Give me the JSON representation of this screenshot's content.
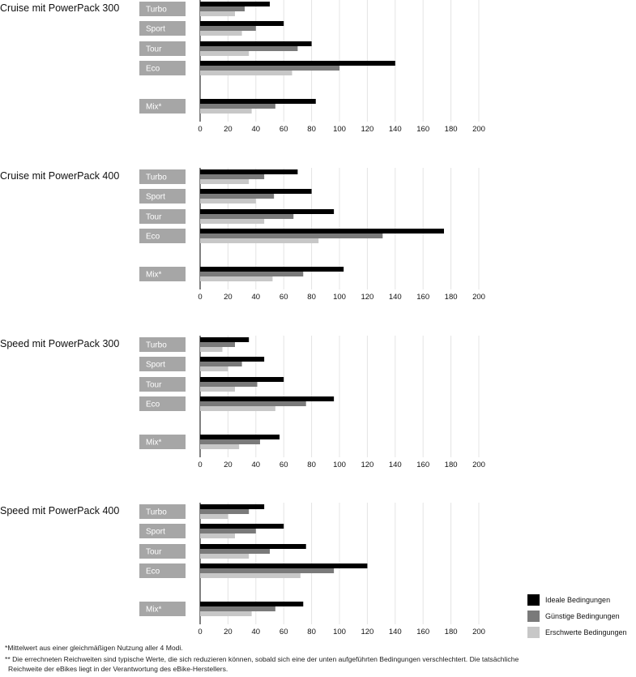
{
  "colors": {
    "ideal": "#000000",
    "guenstig": "#7a7a7a",
    "erschwert": "#c7c7c7",
    "label_box": "#a6a6a6",
    "grid": "#e4e4e4",
    "axis": "#000000"
  },
  "legend": [
    {
      "label": "Ideale Bedingungen",
      "color": "#000000"
    },
    {
      "label": "Günstige Bedingungen",
      "color": "#7a7a7a"
    },
    {
      "label": "Erschwerte Bedingungen",
      "color": "#c7c7c7"
    }
  ],
  "chart_data": [
    {
      "type": "bar",
      "orientation": "horizontal",
      "title": "Cruise mit PowerPack 300",
      "categories": [
        "Turbo",
        "Sport",
        "Tour",
        "Eco",
        "Mix*"
      ],
      "series": [
        {
          "name": "Ideale Bedingungen",
          "values": [
            50,
            60,
            80,
            140,
            83
          ]
        },
        {
          "name": "Günstige Bedingungen",
          "values": [
            32,
            40,
            70,
            100,
            54
          ]
        },
        {
          "name": "Erschwerte Bedingungen",
          "values": [
            25,
            30,
            35,
            66,
            37
          ]
        }
      ],
      "xticks": [
        "0",
        "20",
        "40",
        "60",
        "80",
        "100",
        "120",
        "140",
        "160",
        "180",
        "200"
      ],
      "xlim": [
        0,
        200
      ],
      "grid": true
    },
    {
      "type": "bar",
      "orientation": "horizontal",
      "title": "Cruise mit PowerPack 400",
      "categories": [
        "Turbo",
        "Sport",
        "Tour",
        "Eco",
        "Mix*"
      ],
      "series": [
        {
          "name": "Ideale Bedingungen",
          "values": [
            70,
            80,
            96,
            175,
            103
          ]
        },
        {
          "name": "Günstige Bedingungen",
          "values": [
            46,
            53,
            67,
            131,
            74
          ]
        },
        {
          "name": "Erschwerte Bedingungen",
          "values": [
            35,
            40,
            46,
            85,
            52
          ]
        }
      ],
      "xticks": [
        "0",
        "20",
        "40",
        "60",
        "80",
        "100",
        "120",
        "140",
        "160",
        "180",
        "200"
      ],
      "xlim": [
        0,
        200
      ],
      "grid": true
    },
    {
      "type": "bar",
      "orientation": "horizontal",
      "title": "Speed mit PowerPack 300",
      "categories": [
        "Turbo",
        "Sport",
        "Tour",
        "Eco",
        "Mix*"
      ],
      "series": [
        {
          "name": "Ideale Bedingungen",
          "values": [
            35,
            46,
            60,
            96,
            57
          ]
        },
        {
          "name": "Günstige Bedingungen",
          "values": [
            25,
            30,
            41,
            76,
            43
          ]
        },
        {
          "name": "Erschwerte Bedingungen",
          "values": [
            16,
            20,
            25,
            54,
            28
          ]
        }
      ],
      "xticks": [
        "0",
        "20",
        "40",
        "60",
        "80",
        "100",
        "120",
        "140",
        "160",
        "180",
        "200"
      ],
      "xlim": [
        0,
        200
      ],
      "grid": true
    },
    {
      "type": "bar",
      "orientation": "horizontal",
      "title": "Speed mit PowerPack 400",
      "categories": [
        "Turbo",
        "Sport",
        "Tour",
        "Eco",
        "Mix*"
      ],
      "series": [
        {
          "name": "Ideale Bedingungen",
          "values": [
            46,
            60,
            76,
            120,
            74
          ]
        },
        {
          "name": "Günstige Bedingungen",
          "values": [
            35,
            40,
            50,
            96,
            54
          ]
        },
        {
          "name": "Erschwerte Bedingungen",
          "values": [
            20,
            25,
            35,
            72,
            37
          ]
        }
      ],
      "xticks": [
        "0",
        "20",
        "40",
        "60",
        "80",
        "100",
        "120",
        "140",
        "160",
        "180",
        "200"
      ],
      "xlim": [
        0,
        200
      ],
      "grid": true
    }
  ],
  "footnotes": {
    "mix": "*Mittelwert aus einer gleichmäßigen Nutzung aller 4 Modi.",
    "range_line1": "** Die errechneten Reichweiten sind typische Werte, die sich reduzieren können, sobald sich eine der unten aufgeführten Bedingungen verschlechtert. Die tatsächliche",
    "range_line2": "Reichweite der eBikes liegt in der Verantwortung des eBike-Herstellers."
  }
}
